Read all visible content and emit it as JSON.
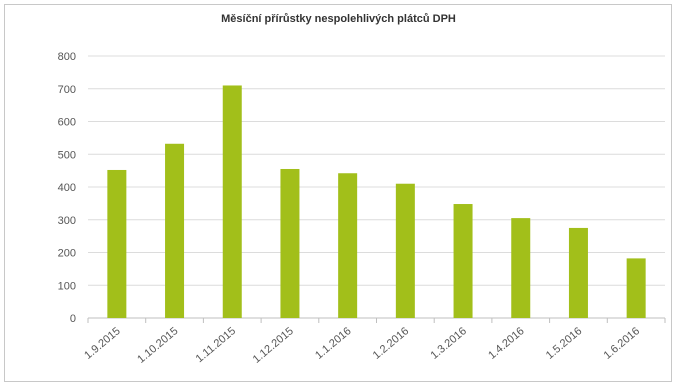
{
  "chart_data": {
    "type": "bar",
    "title": "Měsíční přírůstky nespolehlivých plátců DPH",
    "xlabel": "",
    "ylabel": "",
    "categories": [
      "1.9.2015",
      "1.10.2015",
      "1.11.2015",
      "1.12.2015",
      "1.1.2016",
      "1.2.2016",
      "1.3.2016",
      "1.4.2016",
      "1.5.2016",
      "1.6.2016"
    ],
    "values": [
      452,
      532,
      710,
      455,
      442,
      410,
      348,
      305,
      275,
      182
    ],
    "ylim": [
      0,
      800
    ],
    "yticks": [
      0,
      100,
      200,
      300,
      400,
      500,
      600,
      700,
      800
    ],
    "grid": true,
    "legend": "none",
    "bar_color": "#a2bf1a",
    "grid_color": "#dcdcdc"
  }
}
